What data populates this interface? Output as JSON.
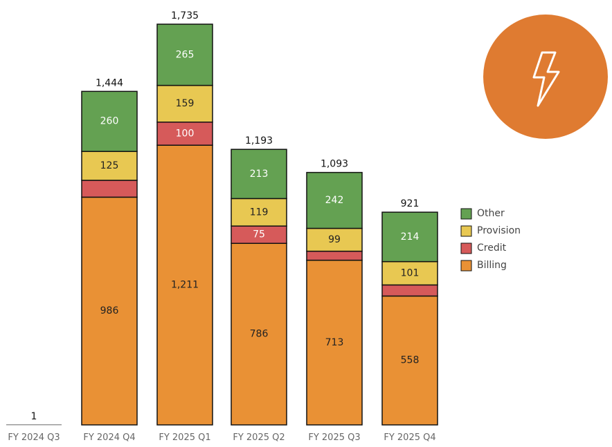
{
  "chart_data": {
    "type": "bar",
    "stacked": true,
    "categories": [
      "FY 2024 Q3",
      "FY 2024 Q4",
      "FY 2025 Q1",
      "FY 2025 Q2",
      "FY 2025 Q3",
      "FY 2025 Q4"
    ],
    "series": [
      {
        "name": "Billing",
        "color": "#E99135",
        "values": [
          1,
          986,
          1211,
          786,
          713,
          558
        ]
      },
      {
        "name": "Credit",
        "color": "#D65A5A",
        "values": [
          0,
          73,
          100,
          75,
          39,
          48
        ]
      },
      {
        "name": "Provision",
        "color": "#E8C852",
        "values": [
          0,
          125,
          159,
          119,
          99,
          101
        ]
      },
      {
        "name": "Other",
        "color": "#64A152",
        "values": [
          0,
          260,
          265,
          213,
          242,
          214
        ]
      }
    ],
    "segment_labels_shown": {
      "Billing": [
        false,
        true,
        true,
        true,
        true,
        true
      ],
      "Credit": [
        false,
        false,
        true,
        true,
        false,
        false
      ],
      "Provision": [
        false,
        true,
        true,
        true,
        true,
        true
      ],
      "Other": [
        false,
        true,
        true,
        true,
        true,
        true
      ]
    },
    "totals": [
      "1",
      "1,444",
      "1,735",
      "1,193",
      "1,093",
      "921"
    ],
    "ylim": [
      0,
      1735
    ],
    "grid": false,
    "legend": {
      "placement": "right",
      "order": [
        "Other",
        "Provision",
        "Credit",
        "Billing"
      ]
    },
    "title": "",
    "xlabel": "",
    "ylabel": ""
  },
  "badge": {
    "icon": "lightning-bolt-icon",
    "color": "#DF7B31"
  }
}
